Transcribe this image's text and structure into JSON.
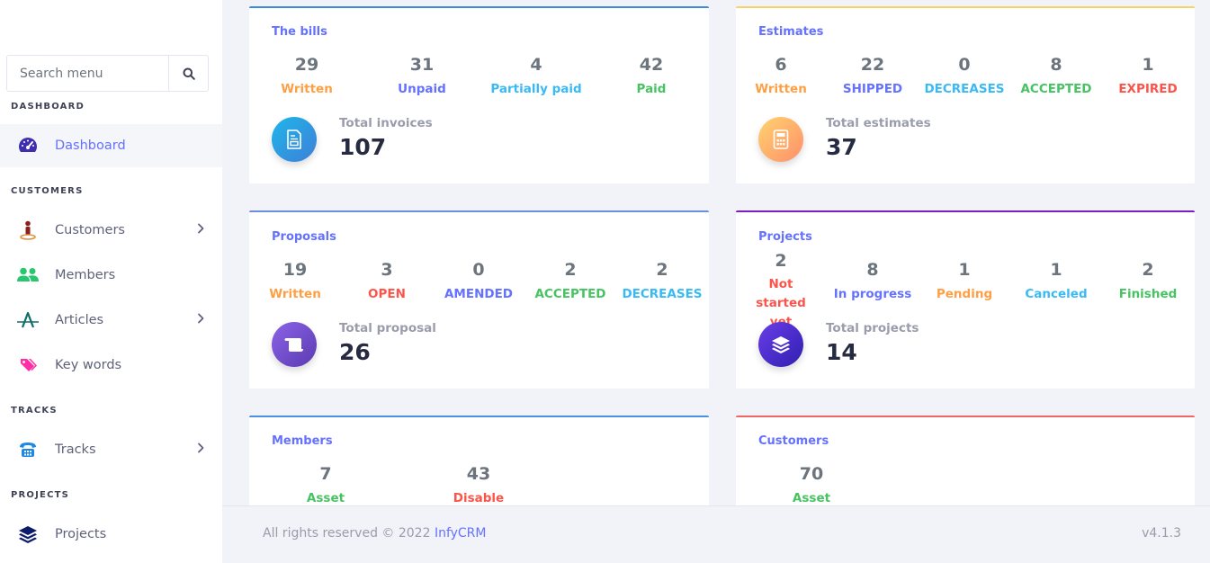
{
  "sidebar": {
    "search": {
      "placeholder": "Search menu"
    },
    "sections": {
      "dashboard": "DASHBOARD",
      "customers": "CUSTOMERS",
      "tracks": "TRACKS",
      "projects": "PROJECTS"
    },
    "items": {
      "dashboard": "Dashboard",
      "customers": "Customers",
      "members": "Members",
      "articles": "Articles",
      "keywords": "Key words",
      "tracks": "Tracks",
      "projects": "Projects"
    }
  },
  "cards": {
    "bills": {
      "title": "The bills",
      "stats": [
        {
          "value": "29",
          "label": "Written",
          "color": "#ff9f43"
        },
        {
          "value": "31",
          "label": "Unpaid",
          "color": "#6571ff"
        },
        {
          "value": "4",
          "label": "Partially paid",
          "color": "#3abaf4"
        },
        {
          "value": "42",
          "label": "Paid",
          "color": "#47c363"
        }
      ],
      "total_label": "Total invoices",
      "total_value": "107"
    },
    "estimates": {
      "title": "Estimates",
      "stats": [
        {
          "value": "6",
          "label": "Written",
          "color": "#ff9f43"
        },
        {
          "value": "22",
          "label": "SHIPPED",
          "color": "#6571ff"
        },
        {
          "value": "0",
          "label": "DECREASES",
          "color": "#3abaf4"
        },
        {
          "value": "8",
          "label": "ACCEPTED",
          "color": "#47c363"
        },
        {
          "value": "1",
          "label": "EXPIRED",
          "color": "#fc544b"
        }
      ],
      "total_label": "Total estimates",
      "total_value": "37"
    },
    "proposals": {
      "title": "Proposals",
      "stats": [
        {
          "value": "19",
          "label": "Written",
          "color": "#ff9f43"
        },
        {
          "value": "3",
          "label": "OPEN",
          "color": "#fc544b"
        },
        {
          "value": "0",
          "label": "AMENDED",
          "color": "#6571ff"
        },
        {
          "value": "2",
          "label": "ACCEPTED",
          "color": "#47c363"
        },
        {
          "value": "2",
          "label": "DECREASES",
          "color": "#3abaf4"
        }
      ],
      "total_label": "Total proposal",
      "total_value": "26"
    },
    "projects": {
      "title": "Projects",
      "stats": [
        {
          "value": "2",
          "label": "Not started yet",
          "color": "#fc544b"
        },
        {
          "value": "8",
          "label": "In progress",
          "color": "#6571ff"
        },
        {
          "value": "1",
          "label": "Pending",
          "color": "#ff9f43"
        },
        {
          "value": "1",
          "label": "Canceled",
          "color": "#3abaf4"
        },
        {
          "value": "2",
          "label": "Finished",
          "color": "#47c363"
        }
      ],
      "total_label": "Total projects",
      "total_value": "14"
    },
    "members": {
      "title": "Members",
      "stats": [
        {
          "value": "7",
          "label": "Asset",
          "color": "#47c363"
        },
        {
          "value": "43",
          "label": "Disable",
          "color": "#fc544b"
        }
      ]
    },
    "customers": {
      "title": "Customers",
      "stats": [
        {
          "value": "70",
          "label": "Asset",
          "color": "#47c363"
        }
      ]
    }
  },
  "footer": {
    "text": "All rights reserved © 2022 ",
    "brand": "InfyCRM",
    "version": "v4.1.3"
  }
}
